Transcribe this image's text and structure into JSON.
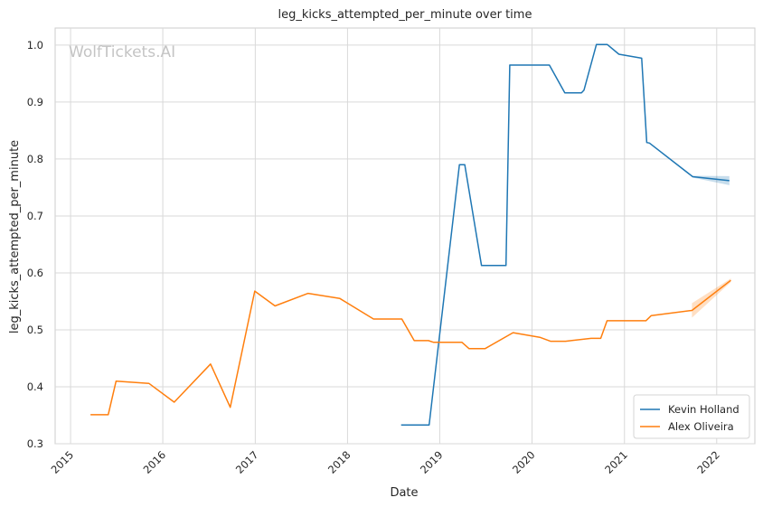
{
  "chart_data": {
    "type": "line",
    "title": "leg_kicks_attempted_per_minute over time",
    "xlabel": "Date",
    "ylabel": "leg_kicks_attempted_per_minute",
    "watermark": "WolfTickets.AI",
    "xlim": [
      "2014-11-01",
      "2022-06-01"
    ],
    "ylim": [
      0.3,
      1.03
    ],
    "x_ticks": [
      "2015",
      "2016",
      "2017",
      "2018",
      "2019",
      "2020",
      "2021",
      "2022"
    ],
    "y_ticks": [
      "0.3",
      "0.4",
      "0.5",
      "0.6",
      "0.7",
      "0.8",
      "0.9",
      "1.0"
    ],
    "grid": true,
    "legend_position": "bottom-right",
    "series": [
      {
        "name": "Kevin Holland",
        "color": "#1f77b4",
        "points": [
          [
            "2018-08-01",
            0.333
          ],
          [
            "2018-11-20",
            0.333
          ],
          [
            "2019-03-20",
            0.79
          ],
          [
            "2019-04-10",
            0.79
          ],
          [
            "2019-06-15",
            0.613
          ],
          [
            "2019-09-20",
            0.613
          ],
          [
            "2019-10-05",
            0.965
          ],
          [
            "2020-03-10",
            0.965
          ],
          [
            "2020-05-10",
            0.916
          ],
          [
            "2020-07-15",
            0.916
          ],
          [
            "2020-07-25",
            0.921
          ],
          [
            "2020-09-12",
            1.001
          ],
          [
            "2020-10-25",
            1.001
          ],
          [
            "2020-12-10",
            0.984
          ],
          [
            "2021-03-10",
            0.977
          ],
          [
            "2021-03-30",
            0.829
          ],
          [
            "2021-04-10",
            0.828
          ],
          [
            "2021-09-28",
            0.769
          ],
          [
            "2022-02-20",
            0.762
          ]
        ]
      },
      {
        "name": "Alex Oliveira",
        "color": "#ff7f0e",
        "points": [
          [
            "2015-03-21",
            0.351
          ],
          [
            "2015-05-30",
            0.351
          ],
          [
            "2015-06-30",
            0.41
          ],
          [
            "2015-11-07",
            0.406
          ],
          [
            "2016-02-15",
            0.373
          ],
          [
            "2016-07-08",
            0.44
          ],
          [
            "2016-09-24",
            0.364
          ],
          [
            "2016-12-30",
            0.568
          ],
          [
            "2017-03-20",
            0.542
          ],
          [
            "2017-07-29",
            0.564
          ],
          [
            "2017-12-02",
            0.555
          ],
          [
            "2018-04-14",
            0.519
          ],
          [
            "2018-08-04",
            0.519
          ],
          [
            "2018-09-22",
            0.481
          ],
          [
            "2018-11-17",
            0.481
          ],
          [
            "2018-12-08",
            0.478
          ],
          [
            "2019-03-30",
            0.478
          ],
          [
            "2019-04-27",
            0.467
          ],
          [
            "2019-06-29",
            0.467
          ],
          [
            "2019-10-18",
            0.495
          ],
          [
            "2020-02-01",
            0.487
          ],
          [
            "2020-03-14",
            0.48
          ],
          [
            "2020-05-13",
            0.48
          ],
          [
            "2020-08-22",
            0.485
          ],
          [
            "2020-09-29",
            0.485
          ],
          [
            "2020-10-24",
            0.516
          ],
          [
            "2021-03-27",
            0.516
          ],
          [
            "2021-04-17",
            0.525
          ],
          [
            "2021-09-25",
            0.534
          ],
          [
            "2022-02-26",
            0.587
          ]
        ]
      }
    ]
  }
}
